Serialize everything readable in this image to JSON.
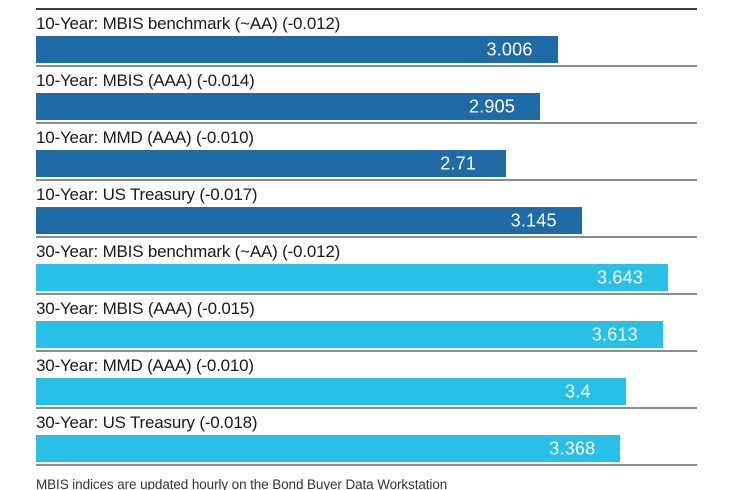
{
  "chart_data": {
    "type": "bar",
    "orientation": "horizontal",
    "title": "",
    "xlabel": "",
    "ylabel": "",
    "xlim": [
      0,
      3.81
    ],
    "grid": false,
    "legend_position": "none",
    "bars": [
      {
        "label": "10-Year: MBIS benchmark (~AA) (-0.012)",
        "value": 3.006,
        "display_value": "3.006",
        "series": "10-Year",
        "change": -0.012
      },
      {
        "label": "10-Year: MBIS (AAA) (-0.014)",
        "value": 2.905,
        "display_value": "2.905",
        "series": "10-Year",
        "change": -0.014
      },
      {
        "label": "10-Year: MMD (AAA) (-0.010)",
        "value": 2.71,
        "display_value": "2.71",
        "series": "10-Year",
        "change": -0.01
      },
      {
        "label": "10-Year: US Treasury (-0.017)",
        "value": 3.145,
        "display_value": "3.145",
        "series": "10-Year",
        "change": -0.017
      },
      {
        "label": "30-Year: MBIS benchmark (~AA) (-0.012)",
        "value": 3.643,
        "display_value": "3.643",
        "series": "30-Year",
        "change": -0.012
      },
      {
        "label": "30-Year: MBIS (AAA) (-0.015)",
        "value": 3.613,
        "display_value": "3.613",
        "series": "30-Year",
        "change": -0.015
      },
      {
        "label": "30-Year: MMD (AAA) (-0.010)",
        "value": 3.4,
        "display_value": "3.4",
        "series": "30-Year",
        "change": -0.01
      },
      {
        "label": "30-Year: US Treasury (-0.018)",
        "value": 3.368,
        "display_value": "3.368",
        "series": "30-Year",
        "change": -0.018
      }
    ],
    "colors": {
      "10-Year": "#1e6ba5",
      "30-Year": "#29c0e8",
      "divider": "#8c8c8c",
      "top_rule": "#3d3d3d",
      "value_text": "#ffffff",
      "label_text": "#1a1a1a"
    },
    "footnote": "MBIS indices are updated hourly on the Bond Buyer Data Workstation"
  }
}
